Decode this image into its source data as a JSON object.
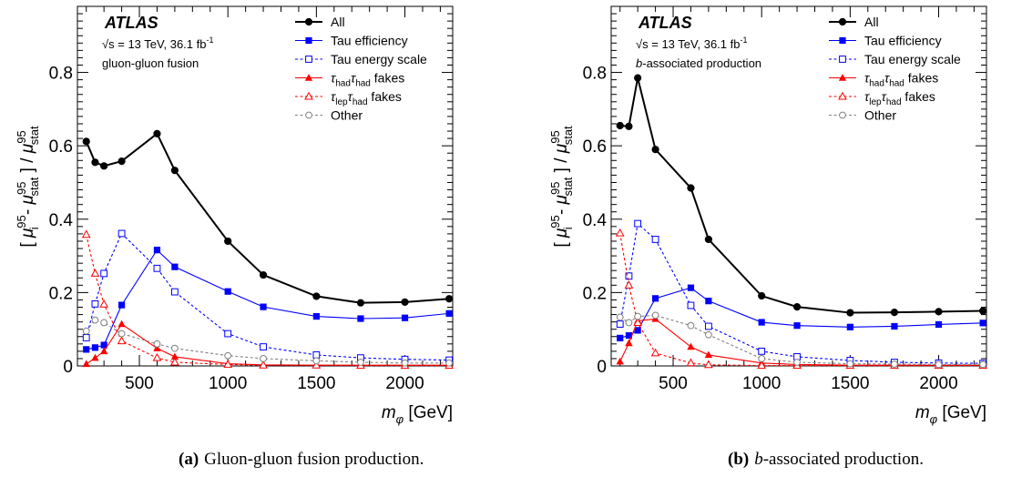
{
  "chart_data": [
    {
      "type": "line",
      "panel_tag": "(a)",
      "caption": "Gluon-gluon fusion production.",
      "atlas_label": "ATLAS",
      "energy_lumi": {
        "prefix": "s = 13 TeV, 36.1 fb",
        "sup": "-1"
      },
      "process": "gluon-gluon fusion",
      "xlabel": {
        "main": "m",
        "sub": "φ",
        "unit": "[GeV]"
      },
      "ylabel": "[ μi95 - μstat95 ] / μstat95",
      "xlim": [
        150,
        2270
      ],
      "ylim": [
        0,
        0.98
      ],
      "xticks": [
        500,
        1000,
        1500,
        2000
      ],
      "yticks": [
        0,
        0.2,
        0.4,
        0.6,
        0.8
      ],
      "x": [
        200,
        250,
        300,
        400,
        600,
        700,
        1000,
        1200,
        1500,
        1750,
        2000,
        2250
      ],
      "series": [
        {
          "name": "All",
          "color": "#000000",
          "marker": "circle-filled",
          "dash": "solid",
          "values": [
            0.612,
            0.555,
            0.545,
            0.558,
            0.633,
            0.533,
            0.34,
            0.248,
            0.19,
            0.172,
            0.174,
            0.183
          ]
        },
        {
          "name": "Tau efficiency",
          "color": "#0000ff",
          "marker": "square-filled",
          "dash": "solid",
          "values": [
            0.045,
            0.05,
            0.057,
            0.166,
            0.316,
            0.27,
            0.203,
            0.161,
            0.135,
            0.129,
            0.131,
            0.143
          ]
        },
        {
          "name": "Tau energy scale",
          "color": "#0000ff",
          "marker": "square-open",
          "dash": "dashed",
          "values": [
            0.077,
            0.169,
            0.252,
            0.361,
            0.266,
            0.202,
            0.088,
            0.052,
            0.03,
            0.022,
            0.018,
            0.016
          ]
        },
        {
          "name": "had had fakes",
          "label": {
            "a": "τ",
            "sa": "had",
            "b": "τ",
            "sb": "had",
            "rest": " fakes"
          },
          "color": "#ff0000",
          "marker": "triangle-filled",
          "dash": "solid",
          "values": [
            0.005,
            0.022,
            0.04,
            0.114,
            0.048,
            0.025,
            0.006,
            0.003,
            0.002,
            0.002,
            0.002,
            0.002
          ]
        },
        {
          "name": "lep had fakes",
          "label": {
            "a": "τ",
            "sa": "lep",
            "b": "τ",
            "sb": "had",
            "rest": " fakes"
          },
          "color": "#ff0000",
          "marker": "triangle-open",
          "dash": "dashed",
          "values": [
            0.358,
            0.252,
            0.168,
            0.068,
            0.022,
            0.01,
            0.004,
            0.002,
            0.002,
            0.001,
            0.001,
            0.001
          ]
        },
        {
          "name": "Other",
          "color": "#808080",
          "marker": "circle-open",
          "dash": "dashed",
          "values": [
            0.095,
            0.125,
            0.118,
            0.088,
            0.06,
            0.048,
            0.028,
            0.02,
            0.014,
            0.01,
            0.008,
            0.008
          ]
        }
      ]
    },
    {
      "type": "line",
      "panel_tag": "(b)",
      "caption_italic": "b",
      "caption": "-associated production.",
      "atlas_label": "ATLAS",
      "energy_lumi": {
        "prefix": "s = 13 TeV, 36.1 fb",
        "sup": "-1"
      },
      "process_italic": "b",
      "process": "-associated production",
      "xlabel": {
        "main": "m",
        "sub": "φ",
        "unit": "[GeV]"
      },
      "ylabel": "[ μi95 - μstat95 ] / μstat95",
      "xlim": [
        150,
        2270
      ],
      "ylim": [
        0,
        0.98
      ],
      "xticks": [
        500,
        1000,
        1500,
        2000
      ],
      "yticks": [
        0,
        0.2,
        0.4,
        0.6,
        0.8
      ],
      "x": [
        200,
        250,
        300,
        400,
        600,
        700,
        1000,
        1200,
        1500,
        1750,
        2000,
        2250
      ],
      "series": [
        {
          "name": "All",
          "color": "#000000",
          "marker": "circle-filled",
          "dash": "solid",
          "values": [
            0.655,
            0.653,
            0.785,
            0.59,
            0.485,
            0.345,
            0.191,
            0.161,
            0.145,
            0.146,
            0.148,
            0.15
          ]
        },
        {
          "name": "Tau efficiency",
          "color": "#0000ff",
          "marker": "square-filled",
          "dash": "solid",
          "values": [
            0.076,
            0.083,
            0.097,
            0.184,
            0.213,
            0.177,
            0.119,
            0.11,
            0.106,
            0.108,
            0.113,
            0.117
          ]
        },
        {
          "name": "Tau energy scale",
          "color": "#0000ff",
          "marker": "square-open",
          "dash": "dashed",
          "values": [
            0.114,
            0.245,
            0.388,
            0.345,
            0.165,
            0.108,
            0.04,
            0.025,
            0.015,
            0.01,
            0.008,
            0.007
          ]
        },
        {
          "name": "had had fakes",
          "label": {
            "a": "τ",
            "sa": "had",
            "b": "τ",
            "sb": "had",
            "rest": " fakes"
          },
          "color": "#ff0000",
          "marker": "triangle-filled",
          "dash": "solid",
          "values": [
            0.012,
            0.062,
            0.123,
            0.128,
            0.052,
            0.03,
            0.008,
            0.004,
            0.002,
            0.002,
            0.002,
            0.002
          ]
        },
        {
          "name": "lep had fakes",
          "label": {
            "a": "τ",
            "sa": "lep",
            "b": "τ",
            "sb": "had",
            "rest": " fakes"
          },
          "color": "#ff0000",
          "marker": "triangle-open",
          "dash": "dashed",
          "values": [
            0.362,
            0.22,
            0.118,
            0.035,
            0.008,
            0.003,
            0.001,
            0.001,
            0.001,
            0.001,
            0.001,
            0.001
          ]
        },
        {
          "name": "Other",
          "color": "#808080",
          "marker": "circle-open",
          "dash": "dashed",
          "values": [
            0.133,
            0.118,
            0.135,
            0.138,
            0.11,
            0.085,
            0.02,
            0.01,
            0.006,
            0.005,
            0.004,
            0.004
          ]
        }
      ]
    }
  ]
}
